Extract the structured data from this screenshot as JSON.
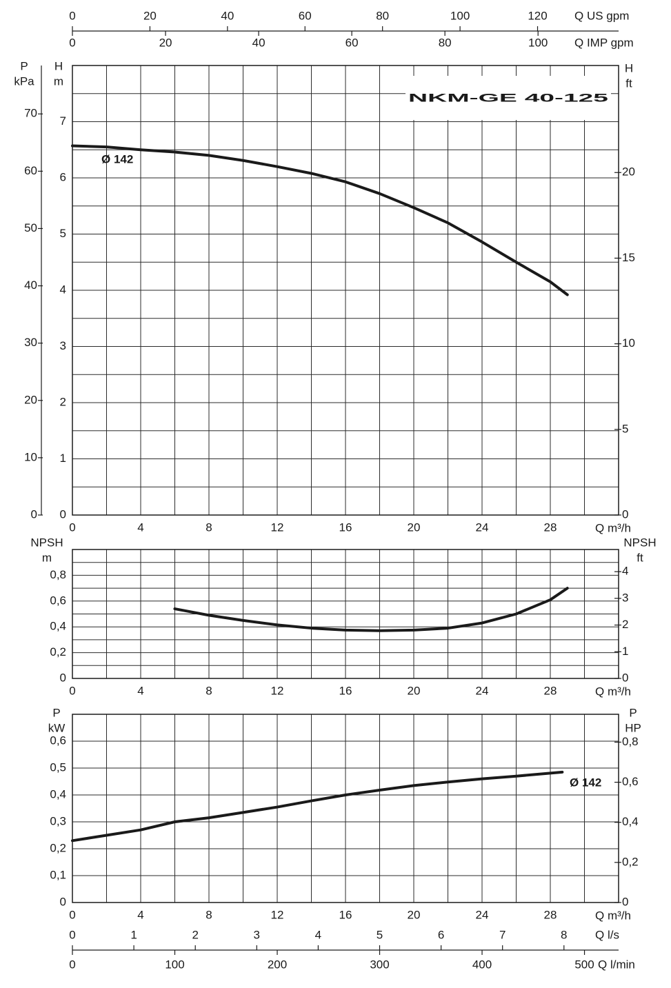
{
  "chart_data": [
    {
      "type": "line",
      "title": "NKM-GE 40-125",
      "xlabel": "Q m³/h",
      "xlim": [
        0,
        32
      ],
      "xticks": [
        0,
        4,
        8,
        12,
        16,
        20,
        24,
        28
      ],
      "ylabel": [
        "H",
        "m"
      ],
      "ylim": [
        0,
        8
      ],
      "yticks": [
        0,
        1,
        2,
        3,
        4,
        5,
        6,
        7
      ],
      "y2label": [
        "H",
        "ft"
      ],
      "y2lim": [
        0,
        26.25
      ],
      "y2ticks": [
        0,
        5,
        10,
        15,
        20
      ],
      "y3label": [
        "P",
        "kPa"
      ],
      "y3lim": [
        0,
        78.45
      ],
      "y3ticks": [
        0,
        10,
        20,
        30,
        40,
        50,
        60,
        70
      ],
      "minor_grid": {
        "x": true,
        "y": true
      },
      "top_scales": [
        {
          "label": "Q US gpm",
          "xlim": [
            0,
            140.9
          ],
          "xticks": [
            0,
            20,
            40,
            60,
            80,
            100,
            120
          ]
        },
        {
          "label": "Q IMP gpm",
          "xlim": [
            0,
            117.3
          ],
          "xticks": [
            0,
            20,
            40,
            60,
            80,
            100
          ]
        }
      ],
      "series": [
        {
          "name": "Ø 142",
          "color": "#1a1a1a",
          "x": [
            0,
            2,
            4,
            6,
            8,
            10,
            12,
            14,
            16,
            18,
            20,
            22,
            24,
            26,
            28,
            29
          ],
          "values": [
            6.57,
            6.55,
            6.5,
            6.46,
            6.4,
            6.31,
            6.2,
            6.08,
            5.93,
            5.72,
            5.47,
            5.2,
            4.86,
            4.5,
            4.15,
            3.92
          ]
        }
      ]
    },
    {
      "type": "line",
      "xlabel": "Q m³/h",
      "xlim": [
        0,
        32
      ],
      "xticks": [
        0,
        4,
        8,
        12,
        16,
        20,
        24,
        28
      ],
      "ylabel": [
        "NPSH",
        "m"
      ],
      "ylim": [
        0,
        1
      ],
      "yticks": [
        0,
        {
          "value": 0.2,
          "label": "0,2"
        },
        {
          "value": 0.4,
          "label": "0,4"
        },
        {
          "value": 0.6,
          "label": "0,6"
        },
        {
          "value": 0.8,
          "label": "0,8"
        }
      ],
      "y2label": [
        "NPSH",
        "ft"
      ],
      "y2lim": [
        0,
        4.83
      ],
      "y2ticks": [
        0,
        1,
        2,
        3,
        4
      ],
      "minor_grid": {
        "x": true,
        "y": true
      },
      "series": [
        {
          "color": "#1a1a1a",
          "x": [
            6,
            8,
            10,
            12,
            14,
            16,
            18,
            20,
            22,
            24,
            26,
            28,
            29
          ],
          "values": [
            0.54,
            0.49,
            0.45,
            0.415,
            0.39,
            0.375,
            0.37,
            0.375,
            0.39,
            0.43,
            0.5,
            0.61,
            0.7
          ]
        }
      ]
    },
    {
      "type": "line",
      "xlabel": "Q m³/h",
      "xlim": [
        0,
        32
      ],
      "xticks": [
        0,
        4,
        8,
        12,
        16,
        20,
        24,
        28
      ],
      "ylabel": [
        "P",
        "kW"
      ],
      "ylim": [
        0,
        0.7
      ],
      "yticks": [
        0,
        {
          "value": 0.1,
          "label": "0,1"
        },
        {
          "value": 0.2,
          "label": "0,2"
        },
        {
          "value": 0.3,
          "label": "0,3"
        },
        {
          "value": 0.4,
          "label": "0,4"
        },
        {
          "value": 0.5,
          "label": "0,5"
        },
        {
          "value": 0.6,
          "label": "0,6"
        }
      ],
      "y2label": [
        "P",
        "HP"
      ],
      "y2lim": [
        0,
        0.939
      ],
      "y2ticks": [
        0,
        {
          "value": 0.2,
          "label": "0,2"
        },
        {
          "value": 0.4,
          "label": "0,4"
        },
        {
          "value": 0.6,
          "label": "0,6"
        },
        {
          "value": 0.8,
          "label": "0,8"
        }
      ],
      "minor_grid": {
        "x": true,
        "y": false
      },
      "bottom_scales": [
        {
          "label": "Q l/s",
          "xlim": [
            0,
            8.889
          ],
          "xticks": [
            0,
            1,
            2,
            3,
            4,
            5,
            6,
            7,
            8
          ]
        },
        {
          "label": "Q l/min",
          "xlim": [
            0,
            533.3
          ],
          "xticks": [
            0,
            100,
            200,
            300,
            400,
            500
          ]
        }
      ],
      "series": [
        {
          "name": "Ø 142",
          "color": "#1a1a1a",
          "x": [
            0,
            2,
            4,
            6,
            8,
            10,
            12,
            14,
            16,
            18,
            20,
            22,
            24,
            26,
            28.7
          ],
          "values": [
            0.23,
            0.25,
            0.27,
            0.3,
            0.315,
            0.335,
            0.355,
            0.378,
            0.4,
            0.418,
            0.435,
            0.448,
            0.46,
            0.47,
            0.485
          ]
        }
      ]
    }
  ]
}
